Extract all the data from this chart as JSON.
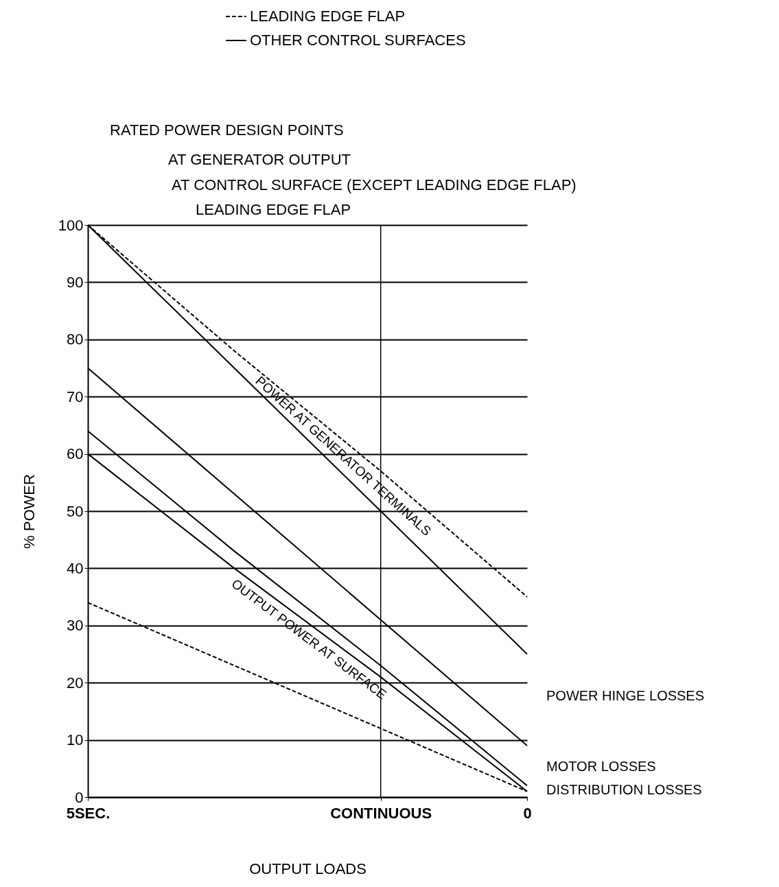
{
  "chart_data": {
    "type": "line",
    "xlabel": "OUTPUT LOADS",
    "ylabel": "% POWER",
    "categories": [
      "5SEC.",
      null,
      "CONTINUOUS",
      "0"
    ],
    "ref_lines": [
      {
        "axis": "x",
        "value": "CONTINUOUS"
      }
    ],
    "ylim": [
      0,
      100
    ],
    "yticks": [
      0,
      10,
      20,
      30,
      40,
      50,
      60,
      70,
      80,
      90,
      100
    ],
    "grid": "y",
    "legend": "top",
    "marker": "none",
    "series": [
      {
        "name": "LEADING EDGE FLAP",
        "color": "#000000",
        "line_style": "dashed",
        "values": [
          100,
          78,
          57,
          35
        ]
      },
      {
        "name": "OTHER CONTROL SURFACES",
        "color": "#000000",
        "line_style": "solid",
        "values": [
          100,
          75,
          50,
          25
        ]
      },
      {
        "color": "#000000",
        "line_style": "solid",
        "values": [
          75,
          53,
          31,
          9
        ]
      },
      {
        "color": "#000000",
        "line_style": "solid",
        "values": [
          64,
          43,
          23,
          2
        ]
      },
      {
        "color": "#000000",
        "line_style": "solid",
        "values": [
          60,
          40,
          21,
          1
        ]
      },
      {
        "color": "#000000",
        "line_style": "dashed",
        "values": [
          34,
          23,
          12,
          1
        ]
      }
    ],
    "annotations": [
      "RATED POWER DESIGN POINTS",
      "AT GENERATOR OUTPUT",
      "AT CONTROL SURFACE (EXCEPT LEADING EDGE FLAP)",
      "LEADING EDGE FLAP",
      "POWER AT GENERATOR TERMINALS",
      "OUTPUT POWER AT SURFACE",
      "POWER HINGE LOSSES",
      "MOTOR LOSSES",
      "DISTRIBUTION LOSSES"
    ]
  }
}
